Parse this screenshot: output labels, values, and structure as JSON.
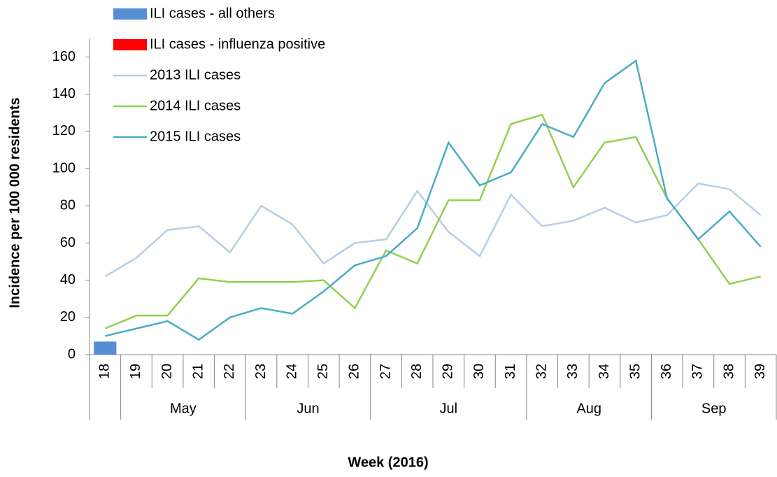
{
  "chart_data": {
    "type": "bar-line",
    "y_label": "Incidence per 100 000 residents",
    "x_label": "Week (2016)",
    "categories": [
      "18",
      "19",
      "20",
      "21",
      "22",
      "23",
      "24",
      "25",
      "26",
      "27",
      "28",
      "29",
      "30",
      "31",
      "32",
      "33",
      "34",
      "35",
      "36",
      "37",
      "38",
      "39"
    ],
    "months": [
      null,
      "May",
      "May",
      "May",
      "May",
      "Jun",
      "Jun",
      "Jun",
      "Jun",
      "Jul",
      "Jul",
      "Jul",
      "Jul",
      "Jul",
      "Aug",
      "Aug",
      "Aug",
      "Aug",
      "Sep",
      "Sep",
      "Sep",
      "Sep"
    ],
    "series": [
      {
        "name": "ILI cases - all others",
        "type": "bar",
        "color": "#558ed5",
        "values": [
          7,
          null,
          null,
          null,
          null,
          null,
          null,
          null,
          null,
          null,
          null,
          null,
          null,
          null,
          null,
          null,
          null,
          null,
          null,
          null,
          null,
          null
        ]
      },
      {
        "name": "ILI cases - influenza positive",
        "type": "bar",
        "color": "#ff0000",
        "values": [
          null,
          null,
          null,
          null,
          null,
          null,
          null,
          null,
          null,
          null,
          null,
          null,
          null,
          null,
          null,
          null,
          null,
          null,
          null,
          null,
          null,
          null
        ]
      },
      {
        "name": "2013 ILI cases",
        "type": "line",
        "color": "#b9cde5",
        "values": [
          42,
          52,
          67,
          69,
          55,
          80,
          70,
          49,
          60,
          62,
          88,
          66,
          53,
          86,
          69,
          72,
          79,
          71,
          75,
          92,
          89,
          75
        ]
      },
      {
        "name": "2014 ILI cases",
        "type": "line",
        "color": "#92d050",
        "values": [
          14,
          21,
          21,
          41,
          39,
          39,
          39,
          40,
          25,
          56,
          49,
          83,
          83,
          124,
          129,
          90,
          114,
          117,
          84,
          62,
          38,
          42
        ]
      },
      {
        "name": "2015 ILI cases",
        "type": "line",
        "color": "#4bacc6",
        "values": [
          10,
          14,
          18,
          8,
          20,
          25,
          22,
          34,
          48,
          53,
          68,
          114,
          91,
          98,
          124,
          117,
          146,
          158,
          84,
          62,
          77,
          58
        ]
      }
    ],
    "ylim": [
      0,
      170
    ],
    "yticks": [
      0,
      20,
      40,
      60,
      80,
      100,
      120,
      140,
      160
    ],
    "grid": false
  }
}
